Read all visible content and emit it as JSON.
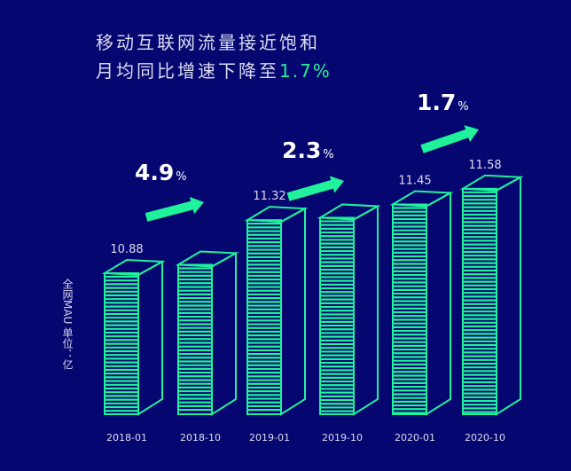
{
  "chart_data": {
    "type": "bar",
    "title_line1": "移动互联网流量接近饱和",
    "title_line2_prefix": "月均同比增速下降至",
    "title_line2_highlight": "1.7%",
    "ylabel": "全网MAU 单位：亿",
    "categories": [
      "2018-01",
      "2018-10",
      "2019-01",
      "2019-10",
      "2020-01",
      "2020-10"
    ],
    "values": [
      10.88,
      10.95,
      11.32,
      11.34,
      11.45,
      11.58
    ],
    "value_labels": [
      "10.88",
      "",
      "11.32",
      "",
      "11.45",
      "11.58"
    ],
    "growth_annotations": [
      {
        "value": "4.9",
        "unit": "%",
        "between": [
          "2018-01",
          "2018-10"
        ]
      },
      {
        "value": "2.3",
        "unit": "%",
        "between": [
          "2019-01",
          "2019-10"
        ]
      },
      {
        "value": "1.7",
        "unit": "%",
        "between": [
          "2020-01",
          "2020-10"
        ]
      }
    ],
    "colors": {
      "background": "#05066f",
      "bar": "#20f29b",
      "text": "#dcdcf2",
      "highlight": "#20f29b"
    }
  }
}
